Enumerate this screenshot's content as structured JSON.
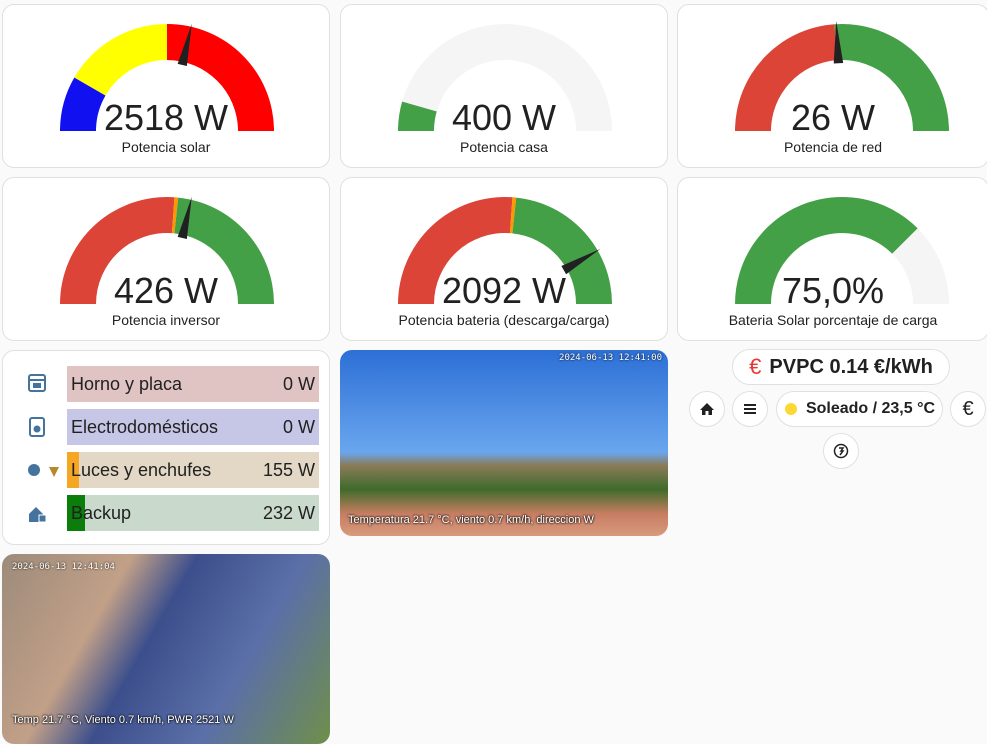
{
  "gauges": [
    {
      "value": "2518 W",
      "label": "Potencia solar"
    },
    {
      "value": "400 W",
      "label": "Potencia casa"
    },
    {
      "value": "26 W",
      "label": "Potencia de red"
    },
    {
      "value": "426 W",
      "label": "Potencia inversor"
    },
    {
      "value": "2092 W",
      "label": "Potencia bateria (descarga/carga)"
    },
    {
      "value": "75,0%",
      "label": "Bateria Solar porcentaje de carga"
    }
  ],
  "power_list": [
    {
      "name": "Horno y placa",
      "value": "0 W"
    },
    {
      "name": "Electrodomésticos",
      "value": "0 W"
    },
    {
      "name": "Luces y enchufes",
      "value": "155 W"
    },
    {
      "name": "Backup",
      "value": "232 W"
    }
  ],
  "camera_1": {
    "timestamp": "2024-06-13 12:41:00",
    "caption": "Temperatura 21.7 °C, viento 0.7 km/h, direccion W"
  },
  "camera_2": {
    "timestamp": "2024-06-13 12:41:04",
    "caption": "Temp 21.7 °C, Viento 0.7 km/h, PWR 2521 W"
  },
  "pvpc": {
    "icon": "€",
    "text": "PVPC 0.14 €/kWh"
  },
  "weather": "Soleado / 23,5 °C",
  "euro_button": "€"
}
